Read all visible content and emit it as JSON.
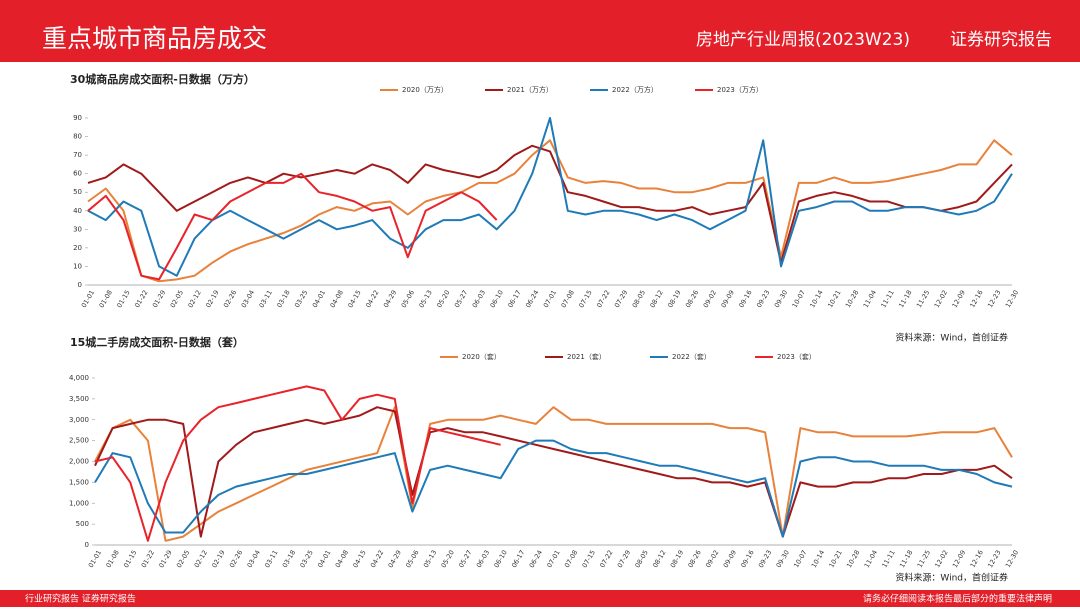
{
  "header": {
    "title": "重点城市商品房成交",
    "report": "房地产行业周报(2023W23)",
    "kind": "证券研究报告"
  },
  "footer": {
    "left": "行业研究报告  证券研究报告",
    "right": "请务必仔细阅读本报告最后部分的重要法律声明"
  },
  "chart_data": [
    {
      "type": "line",
      "title": "30城商品房成交面积-日数据（万方）",
      "source": "资料来源：Wind，首创证券",
      "categories": [
        "01-01",
        "01-08",
        "01-15",
        "01-22",
        "01-29",
        "02-05",
        "02-12",
        "02-19",
        "02-26",
        "03-04",
        "03-11",
        "03-18",
        "03-25",
        "04-01",
        "04-08",
        "04-15",
        "04-22",
        "04-29",
        "05-06",
        "05-13",
        "05-20",
        "05-27",
        "06-03",
        "06-10",
        "06-17",
        "06-24",
        "07-01",
        "07-08",
        "07-15",
        "07-22",
        "07-29",
        "08-05",
        "08-12",
        "08-19",
        "08-26",
        "09-02",
        "09-09",
        "09-16",
        "09-23",
        "09-30",
        "10-07",
        "10-14",
        "10-21",
        "10-28",
        "11-04",
        "11-11",
        "11-18",
        "11-25",
        "12-02",
        "12-09",
        "12-16",
        "12-23",
        "12-30"
      ],
      "ylim": [
        0,
        90
      ],
      "yticks": [
        0,
        10,
        20,
        30,
        40,
        50,
        60,
        70,
        80,
        90
      ],
      "series": [
        {
          "name": "2020（万方）",
          "color": "#e8823a",
          "values": [
            45,
            52,
            40,
            5,
            2,
            3,
            5,
            12,
            18,
            22,
            25,
            28,
            32,
            38,
            42,
            40,
            44,
            45,
            38,
            45,
            48,
            50,
            55,
            55,
            60,
            70,
            78,
            58,
            55,
            56,
            55,
            52,
            52,
            50,
            50,
            52,
            55,
            55,
            58,
            15,
            55,
            55,
            58,
            55,
            55,
            56,
            58,
            60,
            62,
            65,
            65,
            78,
            70
          ]
        },
        {
          "name": "2021（万方）",
          "color": "#a01a1a",
          "values": [
            55,
            58,
            65,
            60,
            50,
            40,
            45,
            50,
            55,
            58,
            55,
            60,
            58,
            60,
            62,
            60,
            65,
            62,
            55,
            65,
            62,
            60,
            58,
            62,
            70,
            75,
            72,
            50,
            48,
            45,
            42,
            42,
            40,
            40,
            42,
            38,
            40,
            42,
            55,
            12,
            45,
            48,
            50,
            48,
            45,
            45,
            42,
            42,
            40,
            42,
            45,
            55,
            65
          ]
        },
        {
          "name": "2022（万方）",
          "color": "#1f7ab8",
          "values": [
            40,
            35,
            45,
            40,
            10,
            5,
            25,
            35,
            40,
            35,
            30,
            25,
            30,
            35,
            30,
            32,
            35,
            25,
            20,
            30,
            35,
            35,
            38,
            30,
            40,
            60,
            90,
            40,
            38,
            40,
            40,
            38,
            35,
            38,
            35,
            30,
            35,
            40,
            78,
            10,
            40,
            42,
            45,
            45,
            40,
            40,
            42,
            42,
            40,
            38,
            40,
            45,
            60
          ]
        },
        {
          "name": "2023（万方）",
          "color": "#e8232a",
          "values": [
            40,
            48,
            35,
            5,
            3,
            20,
            38,
            35,
            45,
            50,
            55,
            55,
            60,
            50,
            48,
            45,
            40,
            42,
            15,
            40,
            45,
            50,
            45,
            35,
            null,
            null,
            null,
            null,
            null,
            null,
            null,
            null,
            null,
            null,
            null,
            null,
            null,
            null,
            null,
            null,
            null,
            null,
            null,
            null,
            null,
            null,
            null,
            null,
            null,
            null,
            null,
            null,
            null
          ]
        }
      ]
    },
    {
      "type": "line",
      "title": "15城二手房成交面积-日数据（套）",
      "source": "资料来源：Wind，首创证券",
      "categories": [
        "01-01",
        "01-08",
        "01-15",
        "01-22",
        "01-29",
        "02-05",
        "02-12",
        "02-19",
        "02-26",
        "03-04",
        "03-11",
        "03-18",
        "03-25",
        "04-01",
        "04-08",
        "04-15",
        "04-22",
        "04-29",
        "05-06",
        "05-13",
        "05-20",
        "05-27",
        "06-03",
        "06-10",
        "06-17",
        "06-24",
        "07-01",
        "07-08",
        "07-15",
        "07-22",
        "07-29",
        "08-05",
        "08-12",
        "08-19",
        "08-26",
        "09-02",
        "09-09",
        "09-16",
        "09-23",
        "09-30",
        "10-07",
        "10-14",
        "10-21",
        "10-28",
        "11-04",
        "11-11",
        "11-18",
        "11-25",
        "12-02",
        "12-09",
        "12-16",
        "12-23",
        "12-30"
      ],
      "ylim": [
        0,
        4000
      ],
      "yticks": [
        0,
        500,
        {
          "value": 1000,
          "label": "1,000"
        },
        {
          "value": 1500,
          "label": "1,500"
        },
        {
          "value": 2000,
          "label": "2,000"
        },
        {
          "value": 2500,
          "label": "2,500"
        },
        {
          "value": 3000,
          "label": "3,000"
        },
        {
          "value": 3500,
          "label": "3,500"
        },
        {
          "value": 4000,
          "label": "4,000"
        }
      ],
      "series": [
        {
          "name": "2020（套）",
          "color": "#e8823a",
          "values": [
            2000,
            2800,
            3000,
            2500,
            100,
            200,
            500,
            800,
            1000,
            1200,
            1400,
            1600,
            1800,
            1900,
            2000,
            2100,
            2200,
            3300,
            900,
            2900,
            3000,
            3000,
            3000,
            3100,
            3000,
            2900,
            3300,
            3000,
            3000,
            2900,
            2900,
            2900,
            2900,
            2900,
            2900,
            2900,
            2800,
            2800,
            2700,
            200,
            2800,
            2700,
            2700,
            2600,
            2600,
            2600,
            2600,
            2650,
            2700,
            2700,
            2700,
            2800,
            2100
          ]
        },
        {
          "name": "2021（套）",
          "color": "#a01a1a",
          "values": [
            1900,
            2800,
            2900,
            3000,
            3000,
            2900,
            200,
            2000,
            2400,
            2700,
            2800,
            2900,
            3000,
            2900,
            3000,
            3100,
            3300,
            3200,
            1200,
            2700,
            2800,
            2700,
            2700,
            2600,
            2500,
            2400,
            2300,
            2200,
            2100,
            2000,
            1900,
            1800,
            1700,
            1600,
            1600,
            1500,
            1500,
            1400,
            1500,
            200,
            1500,
            1400,
            1400,
            1500,
            1500,
            1600,
            1600,
            1700,
            1700,
            1800,
            1800,
            1900,
            1600
          ]
        },
        {
          "name": "2022（套）",
          "color": "#1f7ab8",
          "values": [
            1500,
            2200,
            2100,
            1000,
            300,
            300,
            800,
            1200,
            1400,
            1500,
            1600,
            1700,
            1700,
            1800,
            1900,
            2000,
            2100,
            2200,
            800,
            1800,
            1900,
            1800,
            1700,
            1600,
            2300,
            2500,
            2500,
            2300,
            2200,
            2200,
            2100,
            2000,
            1900,
            1900,
            1800,
            1700,
            1600,
            1500,
            1600,
            200,
            2000,
            2100,
            2100,
            2000,
            2000,
            1900,
            1900,
            1900,
            1800,
            1800,
            1700,
            1500,
            1400
          ]
        },
        {
          "name": "2023（套）",
          "color": "#e8232a",
          "values": [
            2000,
            2100,
            1500,
            100,
            1500,
            2500,
            3000,
            3300,
            3400,
            3500,
            3600,
            3700,
            3800,
            3700,
            3000,
            3500,
            3600,
            3500,
            1000,
            2800,
            2700,
            2600,
            2500,
            2400,
            null,
            null,
            null,
            null,
            null,
            null,
            null,
            null,
            null,
            null,
            null,
            null,
            null,
            null,
            null,
            null,
            null,
            null,
            null,
            null,
            null,
            null,
            null,
            null,
            null,
            null,
            null,
            null,
            null
          ]
        }
      ]
    }
  ]
}
